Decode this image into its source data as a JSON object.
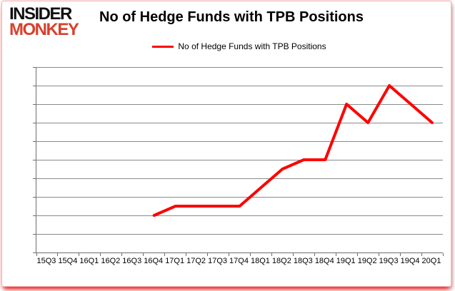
{
  "logo": {
    "line1": "INSIDER",
    "line2": "MONKEY",
    "line1_color": "#111111",
    "line2_color": "#d8402c"
  },
  "header": {
    "title": "No of Hedge Funds with TPB Positions"
  },
  "legend": {
    "label": "No of Hedge Funds with TPB Positions",
    "color": "#ff0000",
    "position": "top"
  },
  "colors": {
    "line": "#ff0000",
    "gridline": "#8a8a8a",
    "axis": "#6e6e6e",
    "background": "#ffffff",
    "border_glow": "#ff0000"
  },
  "chart_data": {
    "type": "line",
    "title": "No of Hedge Funds with TPB Positions",
    "xlabel": "",
    "ylabel": "",
    "categories": [
      "15Q3",
      "15Q4",
      "16Q1",
      "16Q2",
      "16Q3",
      "16Q4",
      "17Q1",
      "17Q2",
      "17Q3",
      "17Q4",
      "18Q1",
      "18Q2",
      "18Q3",
      "18Q4",
      "19Q1",
      "19Q2",
      "19Q3",
      "19Q4",
      "20Q1"
    ],
    "series": [
      {
        "name": "No of Hedge Funds with TPB Positions",
        "color": "#ff0000",
        "values": [
          null,
          null,
          null,
          null,
          null,
          4,
          5,
          5,
          5,
          5,
          7,
          9,
          10,
          10,
          16,
          14,
          18,
          16,
          14
        ]
      }
    ],
    "ylim": [
      0,
      20
    ],
    "ytick_step": 2,
    "yticks": [
      0,
      2,
      4,
      6,
      8,
      10,
      12,
      14,
      16,
      18,
      20
    ],
    "grid": true,
    "legend_position": "top"
  }
}
